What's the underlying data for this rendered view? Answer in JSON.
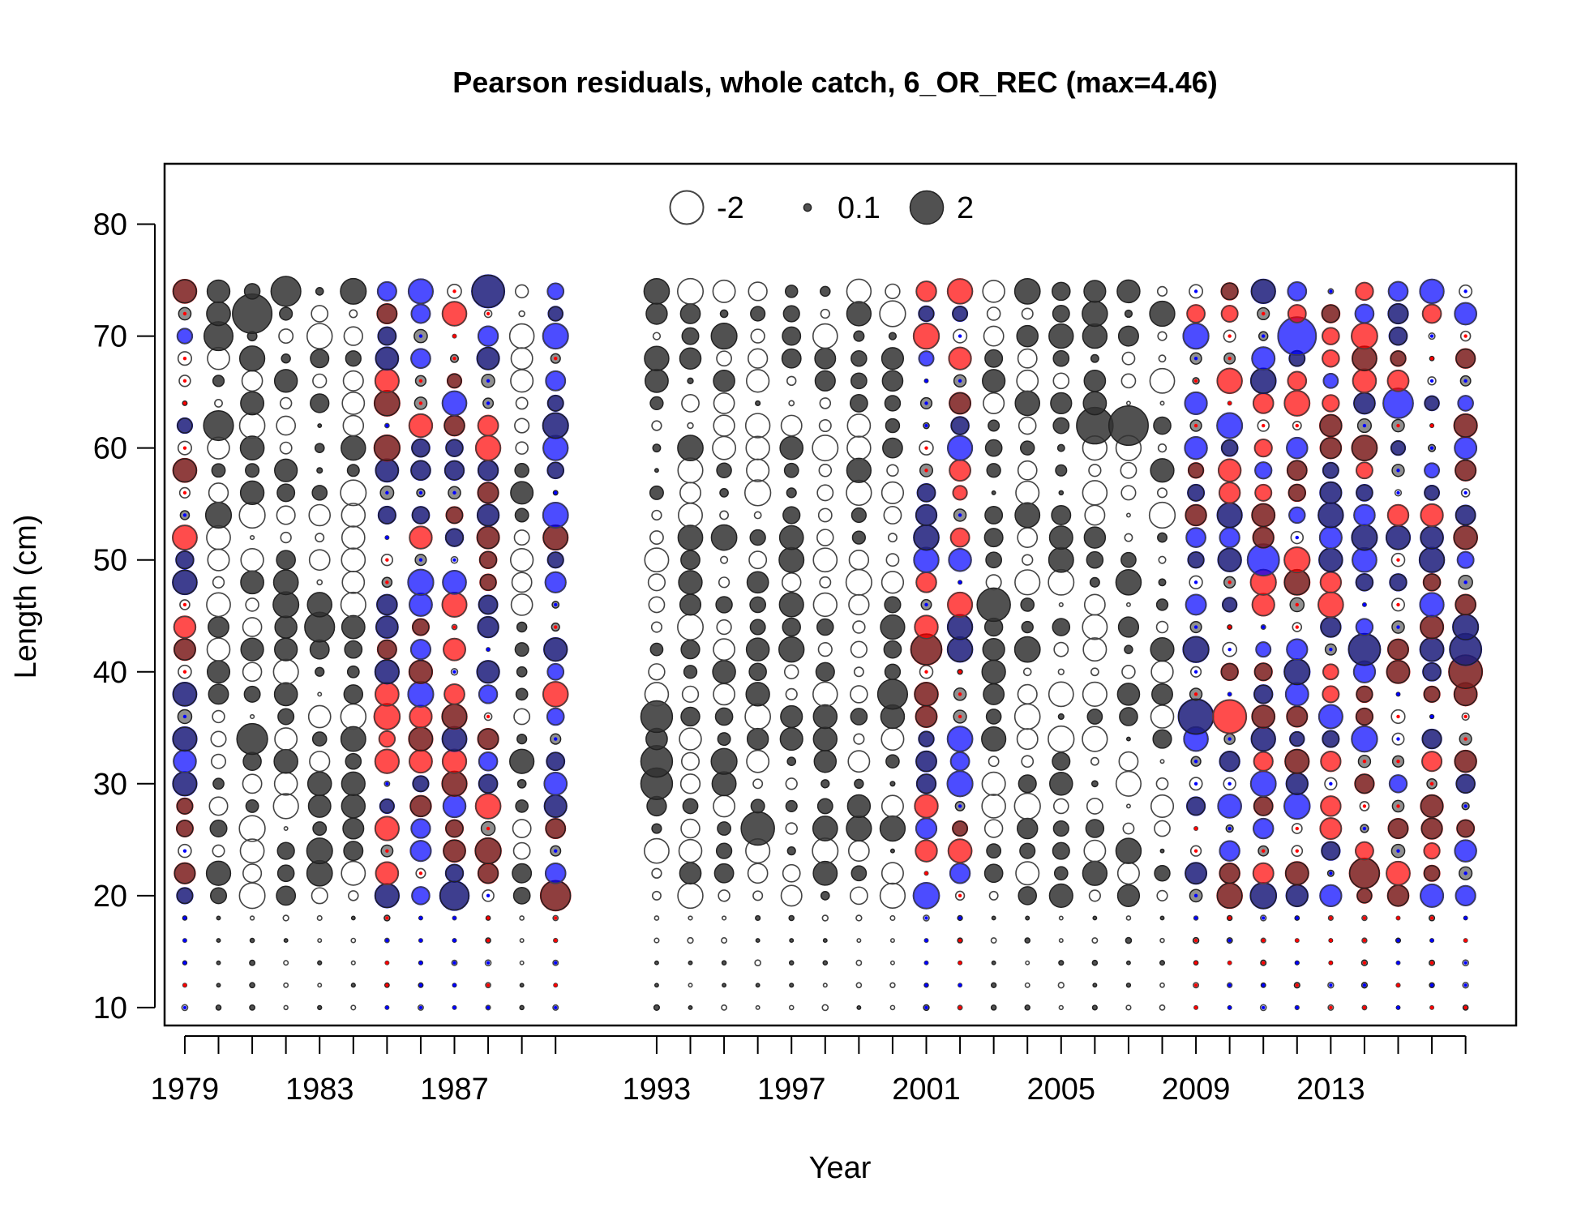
{
  "chart_data": {
    "type": "scatter",
    "subtype": "bubble-residuals",
    "title": "Pearson residuals, whole catch, 6_OR_REC (max=4.46)",
    "xlabel": "Year",
    "ylabel": "Length (cm)",
    "xlim": [
      1978.4,
      2018.5
    ],
    "ylim": [
      8.4,
      85.4
    ],
    "x_ticks": [
      1979,
      1983,
      1987,
      1993,
      1997,
      2001,
      2005,
      2009,
      2013
    ],
    "x_minor_ticks": [
      1979,
      1980,
      1981,
      1982,
      1983,
      1984,
      1985,
      1986,
      1987,
      1988,
      1989,
      1990,
      1993,
      1994,
      1995,
      1996,
      1997,
      1998,
      1999,
      2000,
      2001,
      2002,
      2003,
      2004,
      2005,
      2006,
      2007,
      2008,
      2009,
      2010,
      2011,
      2012,
      2013,
      2014,
      2015,
      2016,
      2017
    ],
    "y_ticks": [
      10,
      20,
      30,
      40,
      50,
      60,
      70,
      80
    ],
    "legend": {
      "position": "top-center",
      "entries": [
        {
          "label": "-2",
          "value": -2,
          "style": "open"
        },
        {
          "label": "0.1",
          "value": 0.1,
          "style": "filled"
        },
        {
          "label": "2",
          "value": 2,
          "style": "filled"
        }
      ]
    },
    "colors": {
      "positive": "#333333",
      "negative_outline": "#444444",
      "overlay_red": "#ff0000",
      "overlay_blue": "#0000ff"
    },
    "years": [
      1979,
      1980,
      1981,
      1982,
      1983,
      1984,
      1985,
      1986,
      1987,
      1988,
      1989,
      1990,
      1993,
      1994,
      1995,
      1996,
      1997,
      1998,
      1999,
      2000,
      2001,
      2002,
      2003,
      2004,
      2005,
      2006,
      2007,
      2008,
      2009,
      2010,
      2011,
      2012,
      2013,
      2014,
      2015,
      2016,
      2017
    ],
    "length_bins_cm": [
      10,
      12,
      14,
      16,
      18,
      20,
      22,
      24,
      26,
      28,
      30,
      32,
      34,
      36,
      38,
      40,
      42,
      44,
      46,
      48,
      50,
      52,
      54,
      56,
      58,
      60,
      62,
      64,
      66,
      68,
      70,
      72,
      74
    ],
    "colored_years": [
      1979,
      1985,
      1986,
      1987,
      1988,
      1990,
      2001,
      2002,
      2009,
      2010,
      2011,
      2012,
      2013,
      2014,
      2015,
      2016,
      2017
    ],
    "key_points": [
      {
        "year": 1981,
        "length": 72,
        "residual": 2.8
      },
      {
        "year": 1982,
        "length": 74,
        "residual": 1.6
      },
      {
        "year": 1980,
        "length": 70,
        "residual": 1.5
      },
      {
        "year": 1980,
        "length": 62,
        "residual": 1.6
      },
      {
        "year": 1983,
        "length": 44,
        "residual": 1.6
      },
      {
        "year": 1981,
        "length": 34,
        "residual": 1.7
      },
      {
        "year": 1988,
        "length": 74,
        "residual": 1.9
      },
      {
        "year": 1987,
        "length": 20,
        "residual": 1.5
      },
      {
        "year": 1990,
        "length": 20,
        "residual": 1.6
      },
      {
        "year": 1993,
        "length": 36,
        "residual": 1.8
      },
      {
        "year": 1993,
        "length": 32,
        "residual": 1.8
      },
      {
        "year": 1993,
        "length": 30,
        "residual": 1.8
      },
      {
        "year": 1996,
        "length": 26,
        "residual": 2.0
      },
      {
        "year": 2000,
        "length": 38,
        "residual": 1.6
      },
      {
        "year": 2001,
        "length": 42,
        "residual": 1.7
      },
      {
        "year": 2003,
        "length": 46,
        "residual": 2.0
      },
      {
        "year": 2006,
        "length": 62,
        "residual": 2.4
      },
      {
        "year": 2007,
        "length": 62,
        "residual": 2.8
      },
      {
        "year": 2009,
        "length": 36,
        "residual": 2.2
      },
      {
        "year": 2010,
        "length": 36,
        "residual": -2.0
      },
      {
        "year": 2011,
        "length": 50,
        "residual": -1.8
      },
      {
        "year": 2012,
        "length": 70,
        "residual": -2.6
      },
      {
        "year": 2014,
        "length": 42,
        "residual": 1.8
      },
      {
        "year": 2014,
        "length": 22,
        "residual": 1.6
      },
      {
        "year": 2015,
        "length": 64,
        "residual": -1.6
      },
      {
        "year": 2017,
        "length": 42,
        "residual": 1.8
      },
      {
        "year": 2017,
        "length": 40,
        "residual": 2.0
      }
    ]
  }
}
